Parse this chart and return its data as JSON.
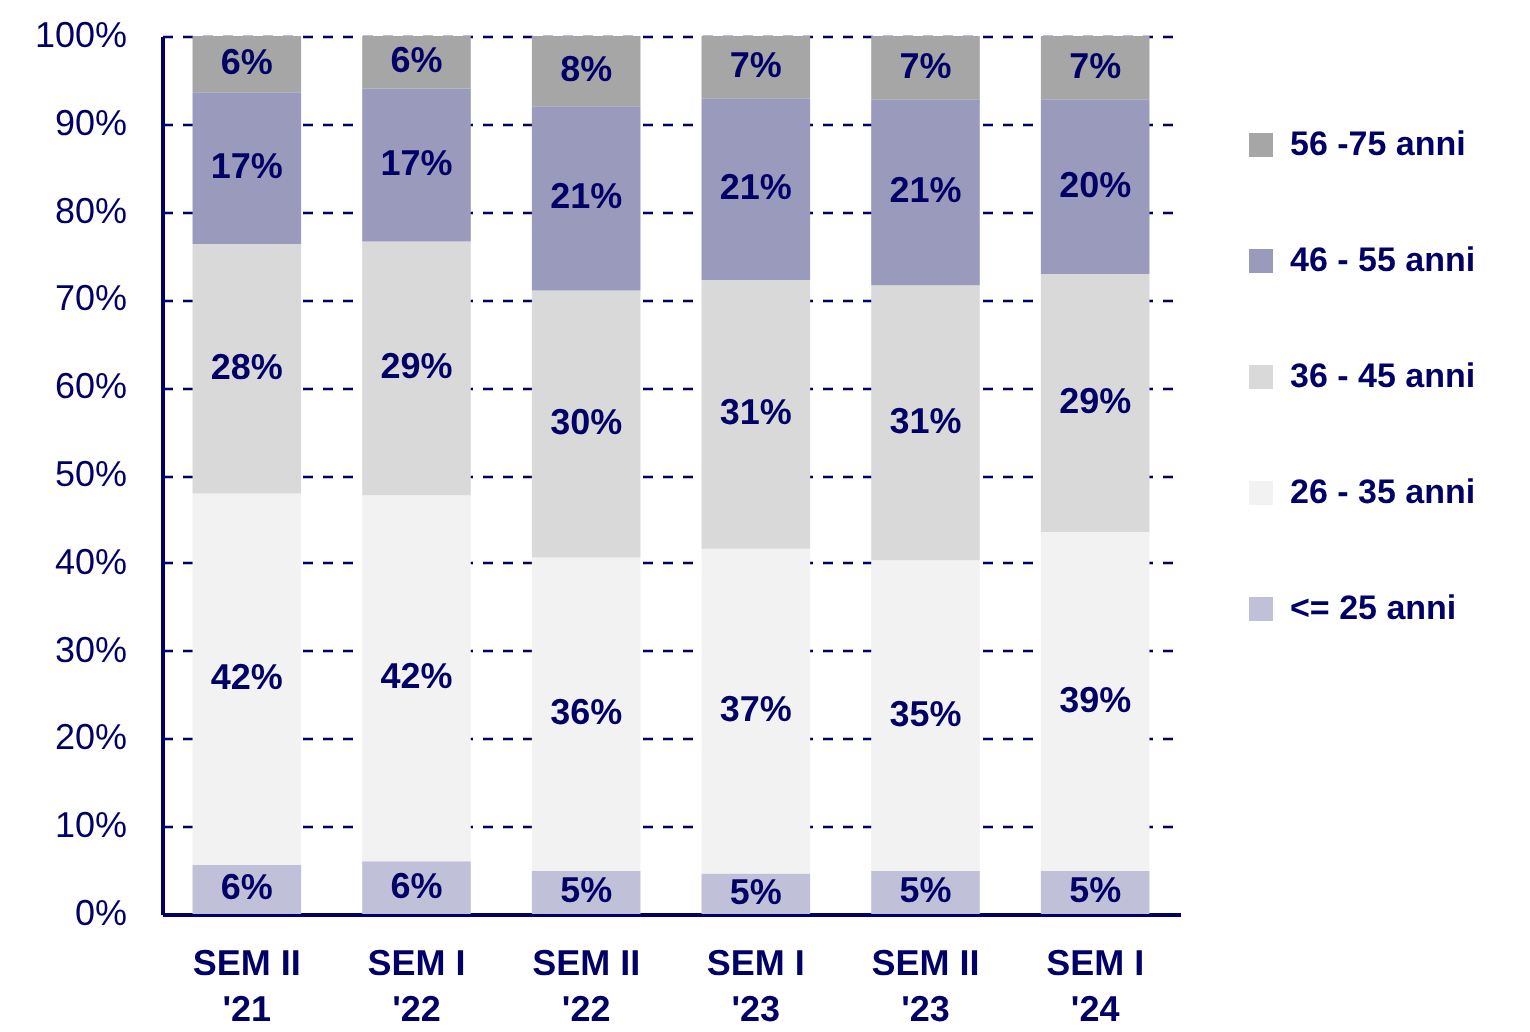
{
  "chart_data": {
    "type": "bar",
    "stacked": true,
    "categories": [
      "SEM II '21",
      "SEM I '22",
      "SEM II '22",
      "SEM I '23",
      "SEM II '23",
      "SEM I '24"
    ],
    "series": [
      {
        "name": "<= 25 anni",
        "color": "#c0c0d8",
        "values": [
          5.6,
          6.0,
          4.9,
          4.6,
          4.9,
          4.9
        ],
        "value_labels": [
          "6%",
          "6%",
          "5%",
          "5%",
          "5%",
          "5%"
        ]
      },
      {
        "name": "26 - 35 anni",
        "color": "#f2f2f2",
        "values": [
          42.3,
          41.7,
          35.7,
          37.0,
          35.4,
          38.6
        ],
        "value_labels": [
          "42%",
          "42%",
          "36%",
          "37%",
          "35%",
          "39%"
        ]
      },
      {
        "name": "36 - 45 anni",
        "color": "#d9d9d9",
        "values": [
          28.4,
          28.9,
          30.4,
          30.6,
          31.3,
          29.4
        ],
        "value_labels": [
          "28%",
          "29%",
          "30%",
          "31%",
          "31%",
          "29%"
        ]
      },
      {
        "name": "46 - 55 anni",
        "color": "#9a9abd",
        "values": [
          17.3,
          17.4,
          21.0,
          20.7,
          21.2,
          19.9
        ],
        "value_labels": [
          "17%",
          "17%",
          "21%",
          "21%",
          "21%",
          "20%"
        ]
      },
      {
        "name": "56 -75 anni",
        "color": "#a6a6a6",
        "values": [
          6.4,
          6.0,
          8.0,
          7.1,
          7.2,
          7.2
        ],
        "value_labels": [
          "6%",
          "6%",
          "8%",
          "7%",
          "7%",
          "7%"
        ]
      }
    ],
    "ylim": [
      0,
      100
    ],
    "yticks": [
      {
        "value": 0,
        "label": "0%"
      },
      {
        "value": 10,
        "label": "10%"
      },
      {
        "value": 20,
        "label": "20%"
      },
      {
        "value": 30,
        "label": "30%"
      },
      {
        "value": 40,
        "label": "40%"
      },
      {
        "value": 50,
        "label": "50%"
      },
      {
        "value": 60,
        "label": "60%"
      },
      {
        "value": 70,
        "label": "70%"
      },
      {
        "value": 80,
        "label": "80%"
      },
      {
        "value": 90,
        "label": "90%"
      },
      {
        "value": 100,
        "label": "100%"
      }
    ],
    "grid": "y",
    "legend": "right"
  }
}
